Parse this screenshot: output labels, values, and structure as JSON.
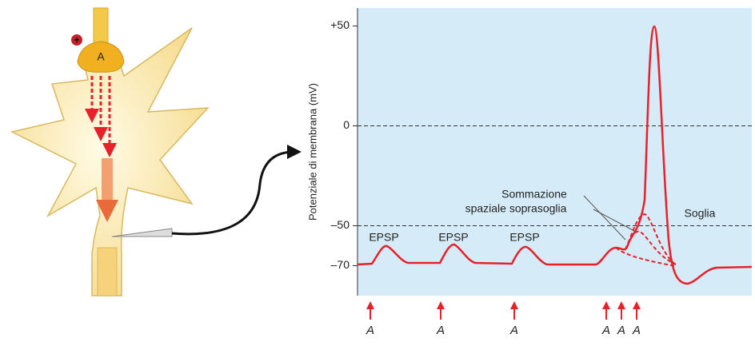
{
  "neuron": {
    "terminal_label": "A",
    "sign": "+"
  },
  "chart_data": {
    "type": "line",
    "y_label": "Potenziale di membrana (mV)",
    "ylim": [
      -85,
      59
    ],
    "yticks": [
      {
        "value": 50,
        "label": "+50"
      },
      0,
      {
        "value": -50,
        "label": "–50"
      },
      {
        "value": -70,
        "label": "–70"
      }
    ],
    "reference_lines": [
      0,
      -50
    ],
    "annotations": [
      "EPSP",
      "EPSP",
      "EPSP",
      "Sommazione",
      "spaziale soprasoglia",
      "Soglia"
    ],
    "stimuli": [
      "A",
      "A",
      "A",
      "A",
      "A",
      "A"
    ],
    "color": "#e8202a"
  }
}
